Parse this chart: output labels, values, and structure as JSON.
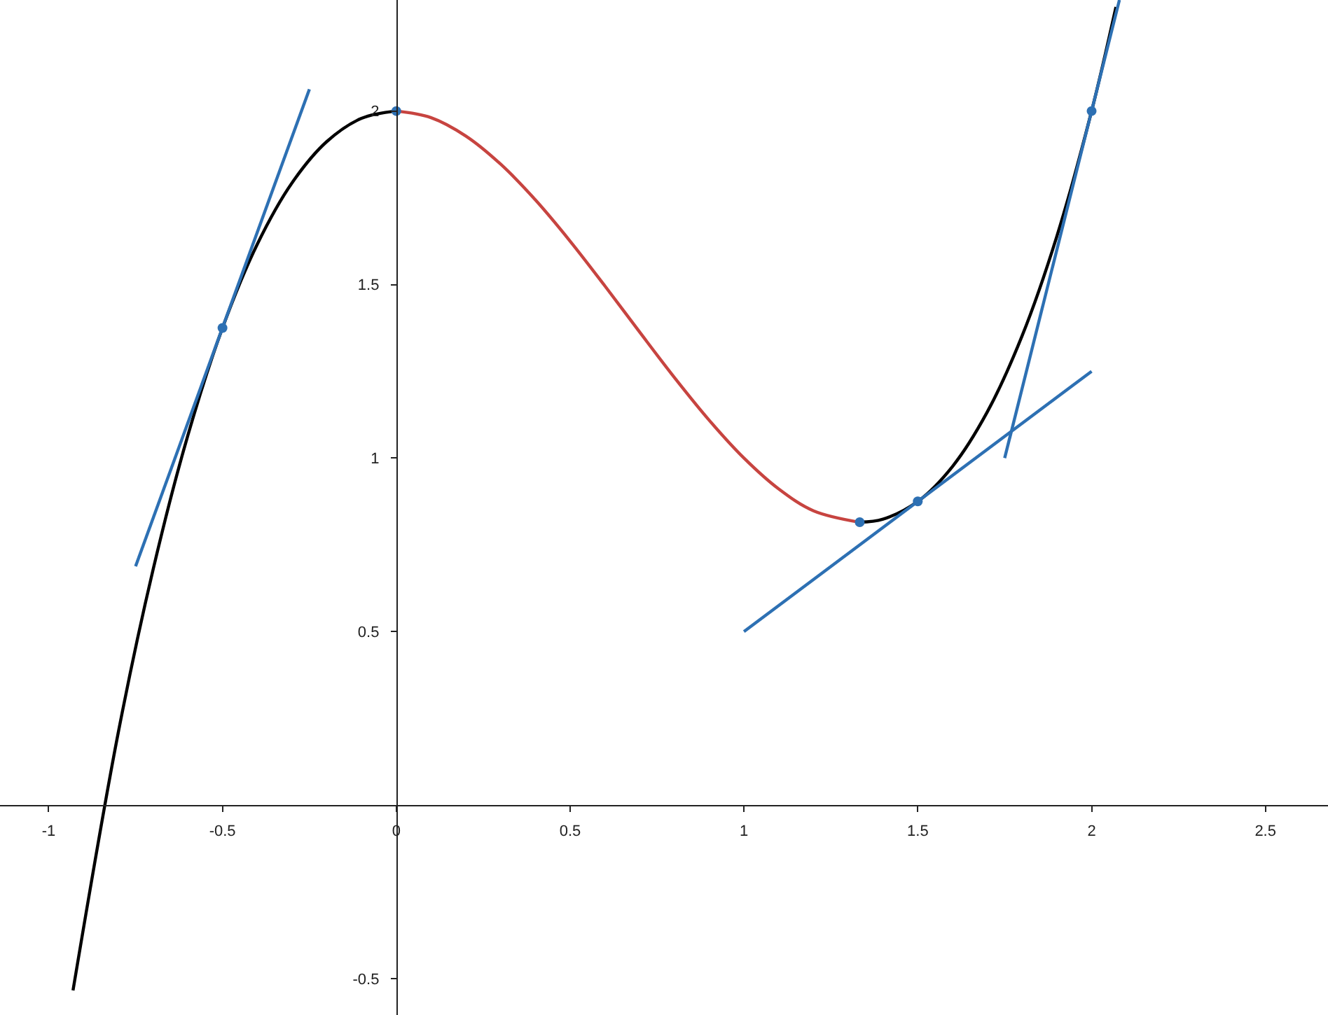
{
  "chart_data": {
    "type": "line",
    "legend": false,
    "grid": false,
    "xlim": [
      -1.14,
      2.68
    ],
    "ylim": [
      -0.605,
      2.32
    ],
    "xticks": [
      -1,
      -0.5,
      0,
      0.5,
      1,
      1.5,
      2,
      2.5
    ],
    "yticks": [
      -0.5,
      0.5,
      1,
      1.5,
      2
    ],
    "series": [
      {
        "type": "line",
        "color": "#000000",
        "x": [
          -0.93,
          -0.8,
          -0.7,
          -0.6,
          -0.5,
          -0.4,
          -0.3,
          -0.2,
          -0.1,
          0
        ],
        "values": [
          -0.534,
          0.208,
          0.677,
          1.064,
          1.375,
          1.616,
          1.793,
          1.912,
          1.979,
          2
        ]
      },
      {
        "type": "line",
        "color": "#000000",
        "x": [
          1.333,
          1.4,
          1.5,
          1.6,
          1.7,
          1.8,
          1.9,
          2,
          2.07
        ],
        "values": [
          0.815,
          0.824,
          0.875,
          0.976,
          1.133,
          1.352,
          1.639,
          2,
          2.3
        ]
      },
      {
        "type": "line",
        "color": "#c74440",
        "x": [
          0,
          0.1,
          0.2,
          0.3,
          0.4,
          0.5,
          0.6,
          0.7,
          0.8,
          0.9,
          1,
          1.1,
          1.2,
          1.333
        ],
        "values": [
          2,
          1.981,
          1.928,
          1.847,
          1.744,
          1.625,
          1.496,
          1.363,
          1.232,
          1.109,
          1,
          0.911,
          0.848,
          0.815
        ]
      },
      {
        "type": "line",
        "color": "#2d70b3",
        "x": [
          -0.75,
          -0.25
        ],
        "values": [
          0.688,
          2.063
        ]
      },
      {
        "type": "line",
        "color": "#2d70b3",
        "x": [
          1,
          2
        ],
        "values": [
          0.5,
          1.25
        ]
      },
      {
        "type": "line",
        "color": "#2d70b3",
        "x": [
          1.75,
          2.08
        ],
        "values": [
          1,
          2.32
        ]
      },
      {
        "type": "scatter",
        "color": "#2d70b3",
        "marker": "circle",
        "x": [
          -0.5,
          0,
          1.333,
          1.5,
          2
        ],
        "values": [
          1.375,
          2,
          0.815,
          0.875,
          2
        ]
      }
    ]
  }
}
